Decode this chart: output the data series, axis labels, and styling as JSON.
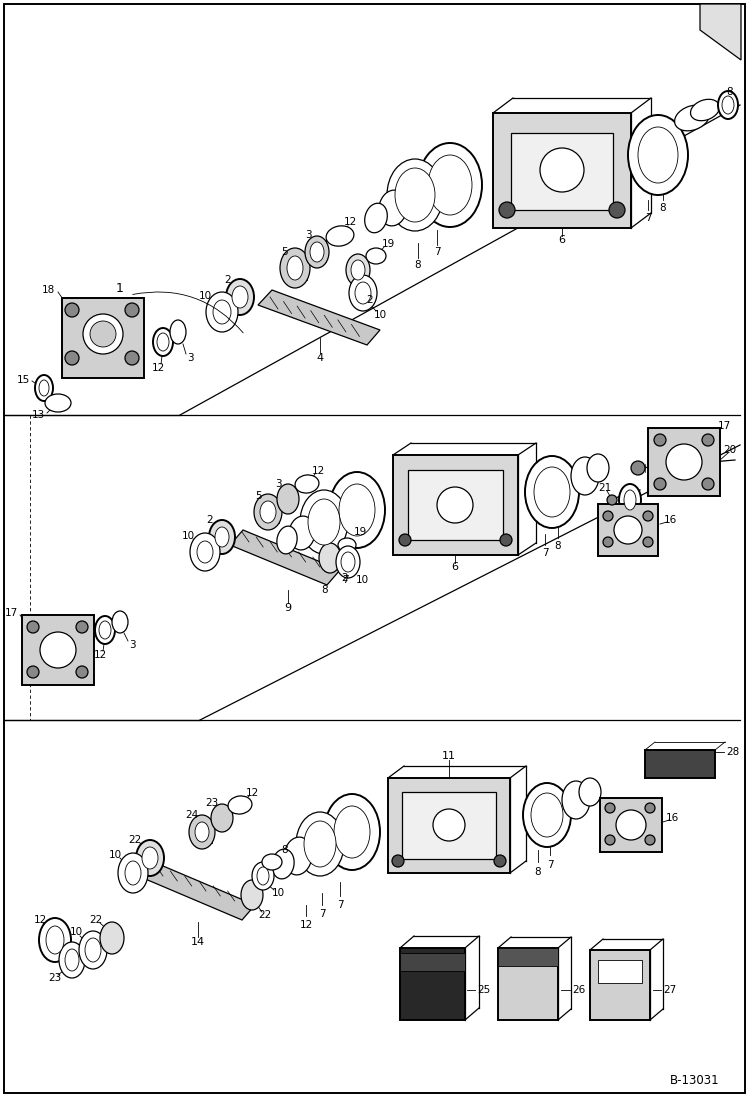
{
  "bg_color": "#ffffff",
  "line_color": "#000000",
  "fig_width": 7.49,
  "fig_height": 10.97,
  "dpi": 100,
  "watermark": "B-13031"
}
